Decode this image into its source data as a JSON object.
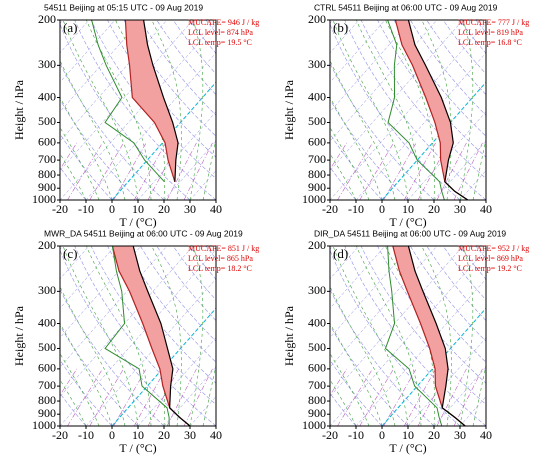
{
  "chart_data": [
    {
      "type": "skewt",
      "title": "54511 Beijing at 05:15 UTC - 09 Aug 2019",
      "panel_label": "(a)",
      "annotations": [
        "MUCAPE= 946 J / kg",
        "LCL level= 874 hPa",
        "LCL temp= 19.5 °C"
      ],
      "ylabel": "Height / hPa",
      "xlabel": "T / (°C)",
      "ylog": true,
      "cape_color": "#f2a0a0",
      "levels": [
        850,
        700,
        600,
        500,
        400,
        300,
        250,
        200
      ],
      "series": [
        {
          "color": "#b22222",
          "values": [
            18,
            8,
            1,
            -10,
            -27,
            -39,
            -47,
            -56
          ]
        },
        {
          "color": "#000000",
          "values": [
            18,
            11,
            6,
            -3,
            -15,
            -30,
            -39,
            -49
          ]
        },
        {
          "color": "#2e8b2e",
          "values": [
            14,
            -1,
            -11,
            -29,
            -31,
            -48,
            -58,
            -69
          ]
        }
      ],
      "xlim": [
        -20,
        40
      ],
      "xticks": [
        -20,
        -10,
        0,
        10,
        20,
        30,
        40
      ],
      "ylim": [
        1000,
        200
      ],
      "yticks": [
        200,
        300,
        400,
        500,
        600,
        700,
        800,
        900,
        1000
      ]
    },
    {
      "type": "skewt",
      "title": "CTRL 54511 Beijing at 06:00 UTC - 09 Aug 2019",
      "panel_label": "(b)",
      "annotations": [
        "MUCAPE= 777 J / kg",
        "LCL level= 819 hPa",
        "LCL temp= 16.8 °C"
      ],
      "ylabel": "Height / hPa",
      "xlabel": "T / (°C)",
      "ylog": true,
      "cape_color": "#f2a0a0",
      "levels": [
        1000,
        925,
        850,
        700,
        600,
        500,
        400,
        300,
        250,
        200
      ],
      "series": [
        {
          "color": "#b22222",
          "values": [
            33,
            25,
            18,
            9,
            3,
            -6,
            -18,
            -34,
            -45,
            -56
          ]
        },
        {
          "color": "#000000",
          "values": [
            33,
            25,
            18,
            12,
            8,
            0,
            -12,
            -29,
            -40,
            -51
          ]
        },
        {
          "color": "#2e8b2e",
          "values": [
            24,
            20,
            16,
            0,
            -9,
            -24,
            -30,
            -41,
            -47,
            -59
          ]
        }
      ],
      "xlim": [
        -20,
        40
      ],
      "xticks": [
        -20,
        -10,
        0,
        10,
        20,
        30,
        40
      ],
      "ylim": [
        1000,
        200
      ],
      "yticks": [
        200,
        300,
        400,
        500,
        600,
        700,
        800,
        900,
        1000
      ]
    },
    {
      "type": "skewt",
      "title": "MWR_DA 54511 Beijing at 06:00 UTC - 09 Aug 2019",
      "panel_label": "(c)",
      "annotations": [
        "MUCAPE= 851 J / kg",
        "LCL level= 865 hPa",
        "LCL temp= 18.2 °C"
      ],
      "ylabel": "Height / hPa",
      "xlabel": "T / (°C)",
      "ylog": true,
      "cape_color": "#f2a0a0",
      "levels": [
        1000,
        925,
        850,
        700,
        600,
        500,
        400,
        300,
        250,
        200
      ],
      "series": [
        {
          "color": "#b22222",
          "values": [
            30,
            23,
            16,
            6,
            -1,
            -11,
            -23,
            -39,
            -50,
            -61
          ]
        },
        {
          "color": "#000000",
          "values": [
            30,
            23,
            16,
            9,
            4,
            -5,
            -16,
            -32,
            -42,
            -53
          ]
        },
        {
          "color": "#2e8b2e",
          "values": [
            22,
            19,
            15,
            -2,
            -9,
            -29,
            -30,
            -42,
            -51,
            -61
          ]
        }
      ],
      "xlim": [
        -20,
        40
      ],
      "xticks": [
        -20,
        -10,
        0,
        10,
        20,
        30,
        40
      ],
      "ylim": [
        1000,
        200
      ],
      "yticks": [
        200,
        300,
        400,
        500,
        600,
        700,
        800,
        900,
        1000
      ]
    },
    {
      "type": "skewt",
      "title": "DIR_DA 54511 Beijing at 06:00 UTC - 09 Aug 2019",
      "panel_label": "(d)",
      "annotations": [
        "MUCAPE= 952 J / kg",
        "LCL level= 869 hPa",
        "LCL temp= 19.2 °C"
      ],
      "ylabel": "Height / hPa",
      "xlabel": "T / (°C)",
      "ylog": true,
      "cape_color": "#f2a0a0",
      "levels": [
        1000,
        925,
        850,
        700,
        600,
        500,
        400,
        300,
        250,
        200
      ],
      "series": [
        {
          "color": "#b22222",
          "values": [
            32,
            25,
            17,
            7,
            1,
            -8,
            -20,
            -36,
            -46,
            -57
          ]
        },
        {
          "color": "#000000",
          "values": [
            32,
            25,
            17,
            11,
            6,
            -2,
            -14,
            -30,
            -40,
            -51
          ]
        },
        {
          "color": "#2e8b2e",
          "values": [
            23,
            19,
            15,
            -1,
            -9,
            -25,
            -30,
            -42,
            -50,
            -59
          ]
        }
      ],
      "xlim": [
        -20,
        40
      ],
      "xticks": [
        -20,
        -10,
        0,
        10,
        20,
        30,
        40
      ],
      "ylim": [
        1000,
        200
      ],
      "yticks": [
        200,
        300,
        400,
        500,
        600,
        700,
        800,
        900,
        1000
      ]
    }
  ]
}
